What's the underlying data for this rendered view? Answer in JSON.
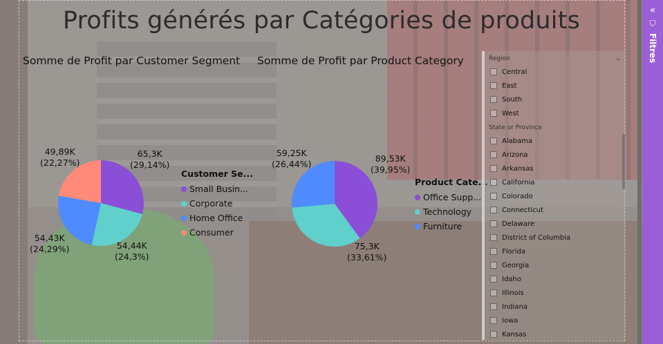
{
  "report": {
    "title": "Profits générés par Catégories de produits"
  },
  "segment_chart": {
    "title": "Somme de Profit par Customer Segment",
    "legend_title": "Customer Se...",
    "legend": [
      "Small Busin...",
      "Corporate",
      "Home Office",
      "Consumer"
    ],
    "labels": [
      {
        "value": "65,3K",
        "pct": "(29,14%)"
      },
      {
        "value": "54,44K",
        "pct": "(24,3%)"
      },
      {
        "value": "54,43K",
        "pct": "(24,29%)"
      },
      {
        "value": "49,89K",
        "pct": "(22,27%)"
      }
    ]
  },
  "category_chart": {
    "title": "Somme de Profit par Product Category",
    "legend_title": "Product Cate...",
    "legend": [
      "Office Supp...",
      "Technology",
      "Furniture"
    ],
    "labels": [
      {
        "value": "89,53K",
        "pct": "(39,95%)"
      },
      {
        "value": "75,3K",
        "pct": "(33,61%)"
      },
      {
        "value": "59,25K",
        "pct": "(26,44%)"
      }
    ]
  },
  "chart_data": [
    {
      "type": "pie",
      "title": "Somme de Profit par Customer Segment",
      "categories": [
        "Small Business",
        "Corporate",
        "Home Office",
        "Consumer"
      ],
      "values": [
        65300,
        54440,
        54430,
        49890
      ],
      "percentages": [
        29.14,
        24.3,
        24.29,
        22.27
      ],
      "colors": [
        "#8a4fd6",
        "#5fd0cc",
        "#4f8bff",
        "#ff8a7a"
      ],
      "legend": "right"
    },
    {
      "type": "pie",
      "title": "Somme de Profit par Product Category",
      "categories": [
        "Office Supplies",
        "Technology",
        "Furniture"
      ],
      "values": [
        89530,
        75300,
        59250
      ],
      "percentages": [
        39.95,
        33.61,
        26.44
      ],
      "colors": [
        "#8a4fd6",
        "#5fd0cc",
        "#4f8bff"
      ],
      "legend": "right"
    }
  ],
  "slicer": {
    "region_label": "Region",
    "regions": [
      "Central",
      "East",
      "South",
      "West"
    ],
    "state_label": "State or Province",
    "states": [
      "Alabama",
      "Arizona",
      "Arkansas",
      "California",
      "Colorado",
      "Connecticut",
      "Delaware",
      "District of Columbia",
      "Florida",
      "Georgia",
      "Idaho",
      "Illinois",
      "Indiana",
      "Iowa",
      "Kansas"
    ]
  },
  "filters_pane": {
    "label": "Filtres",
    "collapse_icon": "double-chevron-left-icon",
    "filter_icon": "funnel-icon"
  }
}
